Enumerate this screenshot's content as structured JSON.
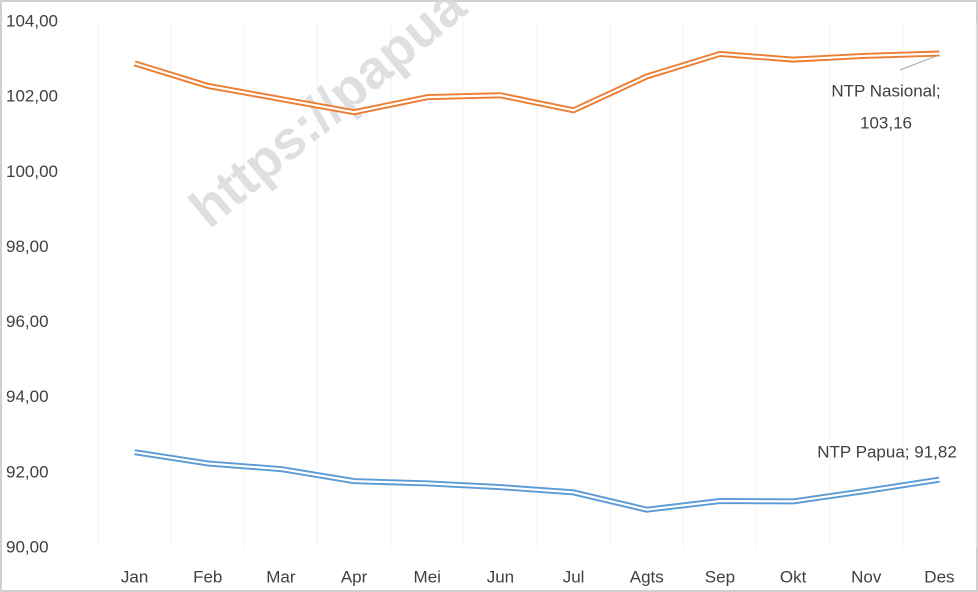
{
  "chart_data": {
    "type": "line",
    "categories": [
      "Jan",
      "Feb",
      "Mar",
      "Apr",
      "Mei",
      "Jun",
      "Jul",
      "Agts",
      "Sep",
      "Okt",
      "Nov",
      "Des"
    ],
    "series": [
      {
        "color": "#ed7d31",
        "values": [
          102.9,
          102.3,
          101.95,
          101.6,
          102.0,
          102.05,
          101.65,
          102.55,
          103.15,
          103.0,
          103.1,
          103.16
        ]
      },
      {
        "color": "#5b9bd5",
        "values": [
          92.55,
          92.25,
          92.1,
          91.78,
          91.72,
          91.62,
          91.48,
          91.02,
          91.25,
          91.24,
          91.52,
          91.82
        ]
      }
    ],
    "annotations": [
      {
        "lines": [
          "NTP Nasional;",
          "103,16"
        ]
      },
      {
        "lines": [
          "NTP Papua; 91,82"
        ]
      }
    ],
    "watermark": "https://papua",
    "ylim": [
      90,
      104
    ],
    "yticks": [
      {
        "value": 90,
        "label": "90,00"
      },
      {
        "value": 92,
        "label": "92,00"
      },
      {
        "value": 94,
        "label": "94,00"
      },
      {
        "value": 96,
        "label": "96,00"
      },
      {
        "value": 98,
        "label": "98,00"
      },
      {
        "value": 100,
        "label": "100,00"
      },
      {
        "value": 102,
        "label": "102,00"
      },
      {
        "value": 104,
        "label": "104,00"
      }
    ]
  }
}
